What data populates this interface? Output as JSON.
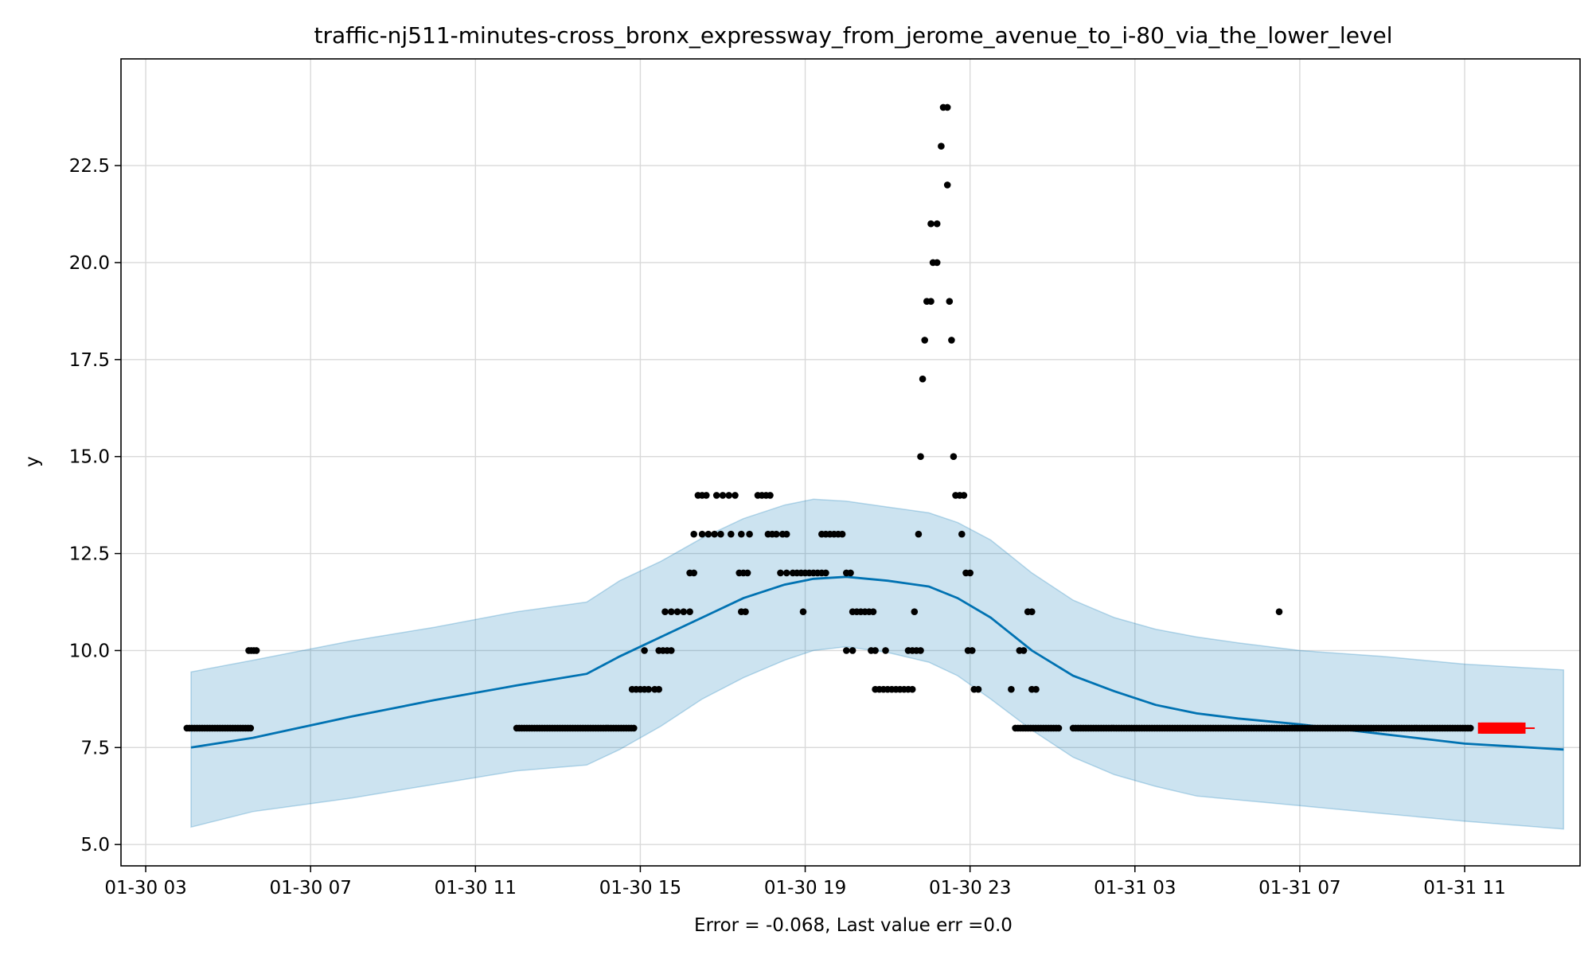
{
  "chart_data": {
    "type": "scatter",
    "title": "traffic-nj511-minutes-cross_bronx_expressway_from_jerome_avenue_to_i-80_via_the_lower_level",
    "xlabel": "Error = -0.068, Last value err =0.0",
    "ylabel": "y",
    "x_unit": "hours since 01-30 00:00",
    "xlim": [
      2.4,
      37.8
    ],
    "ylim": [
      4.45,
      25.25
    ],
    "grid": true,
    "x_ticks": [
      {
        "value": 3,
        "label": "01-30 03"
      },
      {
        "value": 7,
        "label": "01-30 07"
      },
      {
        "value": 11,
        "label": "01-30 11"
      },
      {
        "value": 15,
        "label": "01-30 15"
      },
      {
        "value": 19,
        "label": "01-30 19"
      },
      {
        "value": 23,
        "label": "01-30 23"
      },
      {
        "value": 27,
        "label": "01-31 03"
      },
      {
        "value": 31,
        "label": "01-31 07"
      },
      {
        "value": 35,
        "label": "01-31 11"
      }
    ],
    "y_ticks": [
      {
        "value": 5.0,
        "label": "5.0"
      },
      {
        "value": 7.5,
        "label": "7.5"
      },
      {
        "value": 10.0,
        "label": "10.0"
      },
      {
        "value": 12.5,
        "label": "12.5"
      },
      {
        "value": 15.0,
        "label": "15.0"
      },
      {
        "value": 17.5,
        "label": "17.5"
      },
      {
        "value": 20.0,
        "label": "20.0"
      },
      {
        "value": 22.5,
        "label": "22.5"
      }
    ],
    "colors": {
      "forecast_line": "#0072b2",
      "band_fill": "#0072b2",
      "band_edge": "#0072b2",
      "observed": "#000000",
      "last_points": "#ff0000",
      "grid": "#d9d9d9"
    },
    "forecast": {
      "x": [
        4.1,
        5.6,
        8,
        10,
        12,
        13.7,
        14.5,
        15.5,
        16.5,
        17.5,
        18.5,
        19.2,
        20,
        21,
        22,
        22.7,
        23.5,
        24.5,
        25.5,
        26.5,
        27.5,
        28.5,
        29.5,
        31,
        33,
        35,
        37.4
      ],
      "y": [
        7.5,
        7.75,
        8.3,
        8.72,
        9.1,
        9.4,
        9.85,
        10.35,
        10.85,
        11.35,
        11.7,
        11.85,
        11.9,
        11.8,
        11.65,
        11.35,
        10.85,
        10.0,
        9.35,
        8.95,
        8.6,
        8.38,
        8.25,
        8.1,
        7.85,
        7.6,
        7.45
      ],
      "lower": [
        5.45,
        5.85,
        6.2,
        6.55,
        6.9,
        7.05,
        7.45,
        8.05,
        8.75,
        9.3,
        9.75,
        10.0,
        10.1,
        9.95,
        9.7,
        9.35,
        8.75,
        7.95,
        7.25,
        6.8,
        6.5,
        6.25,
        6.15,
        6.0,
        5.8,
        5.6,
        5.4
      ],
      "upper": [
        9.45,
        9.75,
        10.25,
        10.6,
        11.0,
        11.25,
        11.8,
        12.3,
        12.9,
        13.4,
        13.75,
        13.9,
        13.85,
        13.7,
        13.55,
        13.3,
        12.85,
        12.0,
        11.3,
        10.85,
        10.55,
        10.35,
        10.2,
        10.0,
        9.85,
        9.65,
        9.5
      ]
    },
    "observed_runs": [
      {
        "x_start": 4.0,
        "x_end": 5.6,
        "y": 8
      },
      {
        "x_start": 5.5,
        "x_end": 5.7,
        "y": 10
      },
      {
        "x_start": 12.0,
        "x_end": 14.9,
        "y": 8
      },
      {
        "x_start": 24.1,
        "x_end": 25.2,
        "y": 8
      },
      {
        "x_start": 25.5,
        "x_end": 35.2,
        "y": 8
      }
    ],
    "observed_points": [
      {
        "x": 14.8,
        "y": 9
      },
      {
        "x": 14.9,
        "y": 9
      },
      {
        "x": 15.0,
        "y": 9
      },
      {
        "x": 15.1,
        "y": 9
      },
      {
        "x": 15.2,
        "y": 9
      },
      {
        "x": 15.35,
        "y": 9
      },
      {
        "x": 15.45,
        "y": 9
      },
      {
        "x": 15.1,
        "y": 10
      },
      {
        "x": 15.45,
        "y": 10
      },
      {
        "x": 15.55,
        "y": 10
      },
      {
        "x": 15.65,
        "y": 10
      },
      {
        "x": 15.75,
        "y": 10
      },
      {
        "x": 15.6,
        "y": 11
      },
      {
        "x": 15.75,
        "y": 11
      },
      {
        "x": 15.9,
        "y": 11
      },
      {
        "x": 16.05,
        "y": 11
      },
      {
        "x": 16.2,
        "y": 11
      },
      {
        "x": 16.2,
        "y": 12
      },
      {
        "x": 16.3,
        "y": 12
      },
      {
        "x": 16.3,
        "y": 13
      },
      {
        "x": 16.5,
        "y": 13
      },
      {
        "x": 16.65,
        "y": 13
      },
      {
        "x": 16.8,
        "y": 13
      },
      {
        "x": 16.95,
        "y": 13
      },
      {
        "x": 17.2,
        "y": 13
      },
      {
        "x": 17.45,
        "y": 13
      },
      {
        "x": 16.4,
        "y": 14
      },
      {
        "x": 16.5,
        "y": 14
      },
      {
        "x": 16.6,
        "y": 14
      },
      {
        "x": 16.85,
        "y": 14
      },
      {
        "x": 17.0,
        "y": 14
      },
      {
        "x": 17.15,
        "y": 14
      },
      {
        "x": 17.3,
        "y": 14
      },
      {
        "x": 17.4,
        "y": 12
      },
      {
        "x": 17.5,
        "y": 12
      },
      {
        "x": 17.6,
        "y": 12
      },
      {
        "x": 17.45,
        "y": 11
      },
      {
        "x": 17.55,
        "y": 11
      },
      {
        "x": 17.65,
        "y": 13
      },
      {
        "x": 18.1,
        "y": 13
      },
      {
        "x": 18.2,
        "y": 13
      },
      {
        "x": 18.3,
        "y": 13
      },
      {
        "x": 18.45,
        "y": 13
      },
      {
        "x": 18.55,
        "y": 13
      },
      {
        "x": 17.85,
        "y": 14
      },
      {
        "x": 17.95,
        "y": 14
      },
      {
        "x": 18.05,
        "y": 14
      },
      {
        "x": 18.15,
        "y": 14
      },
      {
        "x": 18.4,
        "y": 12
      },
      {
        "x": 18.55,
        "y": 12
      },
      {
        "x": 18.7,
        "y": 12
      },
      {
        "x": 18.8,
        "y": 12
      },
      {
        "x": 18.9,
        "y": 12
      },
      {
        "x": 19.0,
        "y": 12
      },
      {
        "x": 19.1,
        "y": 12
      },
      {
        "x": 19.2,
        "y": 12
      },
      {
        "x": 19.3,
        "y": 12
      },
      {
        "x": 19.4,
        "y": 12
      },
      {
        "x": 19.5,
        "y": 12
      },
      {
        "x": 18.95,
        "y": 11
      },
      {
        "x": 19.4,
        "y": 13
      },
      {
        "x": 19.5,
        "y": 13
      },
      {
        "x": 19.6,
        "y": 13
      },
      {
        "x": 19.7,
        "y": 13
      },
      {
        "x": 19.8,
        "y": 13
      },
      {
        "x": 19.9,
        "y": 13
      },
      {
        "x": 20.0,
        "y": 12
      },
      {
        "x": 20.1,
        "y": 12
      },
      {
        "x": 20.0,
        "y": 10
      },
      {
        "x": 20.15,
        "y": 10
      },
      {
        "x": 20.15,
        "y": 11
      },
      {
        "x": 20.25,
        "y": 11
      },
      {
        "x": 20.35,
        "y": 11
      },
      {
        "x": 20.45,
        "y": 11
      },
      {
        "x": 20.55,
        "y": 11
      },
      {
        "x": 20.65,
        "y": 11
      },
      {
        "x": 20.6,
        "y": 10
      },
      {
        "x": 20.7,
        "y": 10
      },
      {
        "x": 20.95,
        "y": 10
      },
      {
        "x": 20.7,
        "y": 9
      },
      {
        "x": 20.8,
        "y": 9
      },
      {
        "x": 20.9,
        "y": 9
      },
      {
        "x": 21.0,
        "y": 9
      },
      {
        "x": 21.1,
        "y": 9
      },
      {
        "x": 21.2,
        "y": 9
      },
      {
        "x": 21.3,
        "y": 9
      },
      {
        "x": 21.4,
        "y": 9
      },
      {
        "x": 21.5,
        "y": 9
      },
      {
        "x": 21.6,
        "y": 9
      },
      {
        "x": 21.5,
        "y": 10
      },
      {
        "x": 21.6,
        "y": 10
      },
      {
        "x": 21.7,
        "y": 10
      },
      {
        "x": 21.8,
        "y": 10
      },
      {
        "x": 21.65,
        "y": 11
      },
      {
        "x": 21.75,
        "y": 13
      },
      {
        "x": 21.8,
        "y": 15
      },
      {
        "x": 21.85,
        "y": 17
      },
      {
        "x": 21.9,
        "y": 18
      },
      {
        "x": 21.95,
        "y": 19
      },
      {
        "x": 22.05,
        "y": 19
      },
      {
        "x": 22.05,
        "y": 21
      },
      {
        "x": 22.2,
        "y": 21
      },
      {
        "x": 22.1,
        "y": 20
      },
      {
        "x": 22.2,
        "y": 20
      },
      {
        "x": 22.3,
        "y": 23
      },
      {
        "x": 22.35,
        "y": 24
      },
      {
        "x": 22.45,
        "y": 24
      },
      {
        "x": 22.45,
        "y": 22
      },
      {
        "x": 22.5,
        "y": 19
      },
      {
        "x": 22.55,
        "y": 18
      },
      {
        "x": 22.6,
        "y": 15
      },
      {
        "x": 22.65,
        "y": 14
      },
      {
        "x": 22.75,
        "y": 14
      },
      {
        "x": 22.85,
        "y": 14
      },
      {
        "x": 22.8,
        "y": 13
      },
      {
        "x": 22.9,
        "y": 12
      },
      {
        "x": 23.0,
        "y": 12
      },
      {
        "x": 22.95,
        "y": 10
      },
      {
        "x": 23.05,
        "y": 10
      },
      {
        "x": 23.1,
        "y": 9
      },
      {
        "x": 23.2,
        "y": 9
      },
      {
        "x": 24.0,
        "y": 9
      },
      {
        "x": 24.5,
        "y": 9
      },
      {
        "x": 24.6,
        "y": 9
      },
      {
        "x": 24.2,
        "y": 10
      },
      {
        "x": 24.3,
        "y": 10
      },
      {
        "x": 24.4,
        "y": 11
      },
      {
        "x": 24.5,
        "y": 11
      },
      {
        "x": 30.5,
        "y": 11
      }
    ],
    "last_points": {
      "x_start": 35.4,
      "x_end": 36.4,
      "y": 8,
      "count": 14
    }
  }
}
